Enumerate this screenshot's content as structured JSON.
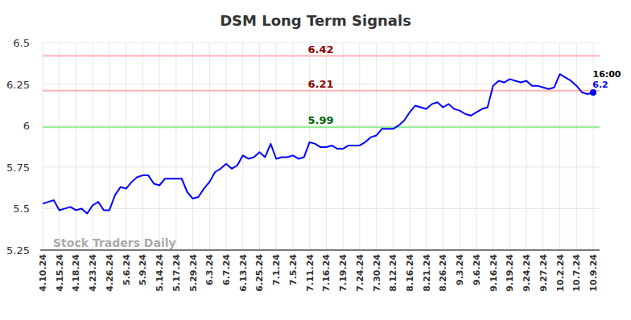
{
  "chart_data": {
    "type": "line",
    "title": "DSM Long Term Signals",
    "categories": [
      "4.10.24",
      null,
      null,
      "4.15.24",
      null,
      null,
      "4.18.24",
      null,
      null,
      "4.23.24",
      null,
      null,
      "4.26.24",
      null,
      null,
      "5.6.24",
      null,
      null,
      "5.9.24",
      null,
      null,
      "5.14.24",
      null,
      null,
      "5.17.24",
      null,
      null,
      "5.29.24",
      null,
      null,
      "6.3.24",
      null,
      null,
      "6.7.24",
      null,
      null,
      "6.13.24",
      null,
      null,
      "6.25.24",
      null,
      null,
      "7.1.24",
      null,
      null,
      "7.5.24",
      null,
      null,
      "7.11.24",
      null,
      null,
      "7.16.24",
      null,
      null,
      "7.19.24",
      null,
      null,
      "7.24.24",
      null,
      null,
      "7.30.24",
      null,
      null,
      "8.12.24",
      null,
      null,
      "8.16.24",
      null,
      null,
      "8.21.24",
      null,
      null,
      "8.26.24",
      null,
      null,
      "9.3.24",
      null,
      null,
      "9.6.24",
      null,
      null,
      "9.16.24",
      null,
      null,
      "9.19.24",
      null,
      null,
      "9.24.24",
      null,
      null,
      "9.27.24",
      null,
      null,
      "10.2.24",
      null,
      null,
      "10.7.24",
      null,
      null,
      "10.9.24"
    ],
    "values": [
      5.53,
      5.54,
      5.55,
      5.49,
      5.5,
      5.51,
      5.49,
      5.5,
      5.47,
      5.52,
      5.54,
      5.49,
      5.49,
      5.58,
      5.63,
      5.62,
      5.66,
      5.69,
      5.7,
      5.7,
      5.65,
      5.64,
      5.68,
      5.68,
      5.68,
      5.68,
      5.6,
      5.56,
      5.57,
      5.62,
      5.66,
      5.72,
      5.74,
      5.77,
      5.74,
      5.76,
      5.82,
      5.8,
      5.81,
      5.84,
      5.81,
      5.89,
      5.8,
      5.81,
      5.81,
      5.82,
      5.8,
      5.81,
      5.9,
      5.89,
      5.87,
      5.87,
      5.88,
      5.86,
      5.86,
      5.88,
      5.88,
      5.88,
      5.9,
      5.93,
      5.94,
      5.98,
      5.98,
      5.98,
      6.0,
      6.03,
      6.08,
      6.12,
      6.11,
      6.1,
      6.13,
      6.14,
      6.11,
      6.13,
      6.1,
      6.09,
      6.07,
      6.06,
      6.08,
      6.1,
      6.11,
      6.24,
      6.27,
      6.26,
      6.28,
      6.27,
      6.26,
      6.27,
      6.24,
      6.24,
      6.23,
      6.22,
      6.23,
      6.31,
      6.29,
      6.27,
      6.24,
      6.2,
      6.19,
      6.2
    ],
    "color": "#0000ff",
    "ylim": [
      5.25,
      6.5
    ],
    "yticks": [
      5.25,
      5.5,
      5.75,
      6,
      6.25,
      6.5
    ],
    "grid": true,
    "reference_lines": [
      {
        "value": 6.42,
        "label": "6.42",
        "color": "#ffb3b3",
        "label_color": "#8b0000"
      },
      {
        "value": 6.21,
        "label": "6.21",
        "color": "#ffb3b3",
        "label_color": "#8b0000"
      },
      {
        "value": 5.99,
        "label": "5.99",
        "color": "#90ee90",
        "label_color": "#006400"
      }
    ],
    "last_point": {
      "time": "16:00",
      "value": 6.2,
      "label": "6.2"
    },
    "watermark": "Stock Traders Daily"
  }
}
